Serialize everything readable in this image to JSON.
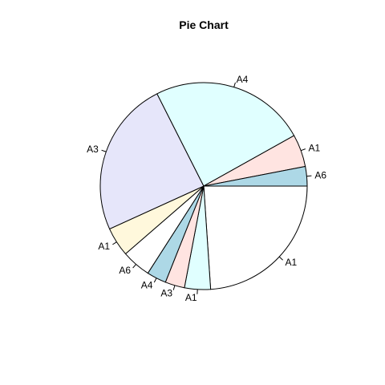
{
  "chart_data": {
    "type": "pie",
    "title": "Pie Chart",
    "slices": [
      {
        "label": "A1",
        "value": 23.6,
        "color": "#FFFFFF"
      },
      {
        "label": "A1",
        "value": 4.0,
        "color": "#E0FFFF"
      },
      {
        "label": "A3",
        "value": 3.0,
        "color": "#FFE4E1"
      },
      {
        "label": "A4",
        "value": 3.0,
        "color": "#ADD8E6"
      },
      {
        "label": "A6",
        "value": 4.5,
        "color": "#FFFFFF"
      },
      {
        "label": "A1",
        "value": 4.5,
        "color": "#FFF8DC"
      },
      {
        "label": "A3",
        "value": 24.0,
        "color": "#E6E6FA"
      },
      {
        "label": "A4",
        "value": 24.0,
        "color": "#E0FFFF"
      },
      {
        "label": "A1",
        "value": 5.0,
        "color": "#FFE4E1"
      },
      {
        "label": "A6",
        "value": 3.0,
        "color": "#ADD8E6"
      }
    ],
    "start": "east",
    "direction": "clockwise"
  }
}
